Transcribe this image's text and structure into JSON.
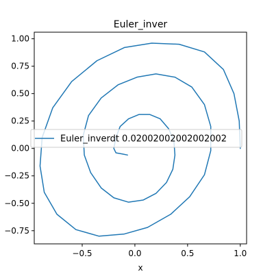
{
  "chart_data": {
    "type": "line",
    "title": "Euler_inver",
    "xlabel": "x",
    "ylabel": "",
    "xlim": [
      -0.955,
      1.06
    ],
    "ylim": [
      -0.87,
      1.06
    ],
    "xticks": [
      -0.5,
      0.0,
      0.5,
      1.0
    ],
    "xtick_labels": [
      "−0.5",
      "0.0",
      "0.5",
      "1.0"
    ],
    "yticks": [
      -0.75,
      -0.5,
      -0.25,
      0.0,
      0.25,
      0.5,
      0.75,
      1.0
    ],
    "ytick_labels": [
      "−0.75",
      "−0.50",
      "−0.25",
      "0.00",
      "0.25",
      "0.50",
      "0.75",
      "1.00"
    ],
    "grid": false,
    "legend": "center-left",
    "series": [
      {
        "name": "Euler_inverdt 0.02002002002002002",
        "color": "#1f77b4",
        "points": [
          [
            1.0,
            0.0
          ],
          [
            0.99,
            0.25
          ],
          [
            0.94,
            0.5
          ],
          [
            0.84,
            0.72
          ],
          [
            0.66,
            0.88
          ],
          [
            0.42,
            0.95
          ],
          [
            0.16,
            0.96
          ],
          [
            -0.1,
            0.92
          ],
          [
            -0.36,
            0.8
          ],
          [
            -0.6,
            0.61
          ],
          [
            -0.78,
            0.37
          ],
          [
            -0.88,
            0.1
          ],
          [
            -0.9,
            -0.16
          ],
          [
            -0.86,
            -0.4
          ],
          [
            -0.74,
            -0.6
          ],
          [
            -0.56,
            -0.74
          ],
          [
            -0.34,
            -0.8
          ],
          [
            -0.1,
            -0.78
          ],
          [
            0.12,
            -0.72
          ],
          [
            0.34,
            -0.6
          ],
          [
            0.52,
            -0.44
          ],
          [
            0.66,
            -0.24
          ],
          [
            0.72,
            -0.02
          ],
          [
            0.72,
            0.2
          ],
          [
            0.66,
            0.4
          ],
          [
            0.54,
            0.56
          ],
          [
            0.38,
            0.65
          ],
          [
            0.2,
            0.68
          ],
          [
            0.02,
            0.65
          ],
          [
            -0.16,
            0.58
          ],
          [
            -0.32,
            0.46
          ],
          [
            -0.44,
            0.3
          ],
          [
            -0.49,
            0.12
          ],
          [
            -0.48,
            -0.06
          ],
          [
            -0.42,
            -0.22
          ],
          [
            -0.32,
            -0.36
          ],
          [
            -0.2,
            -0.45
          ],
          [
            -0.06,
            -0.49
          ],
          [
            0.08,
            -0.47
          ],
          [
            0.2,
            -0.41
          ],
          [
            0.3,
            -0.31
          ],
          [
            0.36,
            -0.19
          ],
          [
            0.38,
            -0.06
          ],
          [
            0.37,
            0.07
          ],
          [
            0.32,
            0.18
          ],
          [
            0.24,
            0.27
          ],
          [
            0.14,
            0.31
          ],
          [
            0.04,
            0.31
          ],
          [
            -0.06,
            0.27
          ],
          [
            -0.14,
            0.2
          ],
          [
            -0.18,
            0.1
          ],
          [
            -0.2,
            0.0
          ],
          [
            -0.18,
            -0.04
          ],
          [
            -0.12,
            -0.05
          ],
          [
            -0.07,
            -0.06
          ]
        ]
      }
    ]
  }
}
